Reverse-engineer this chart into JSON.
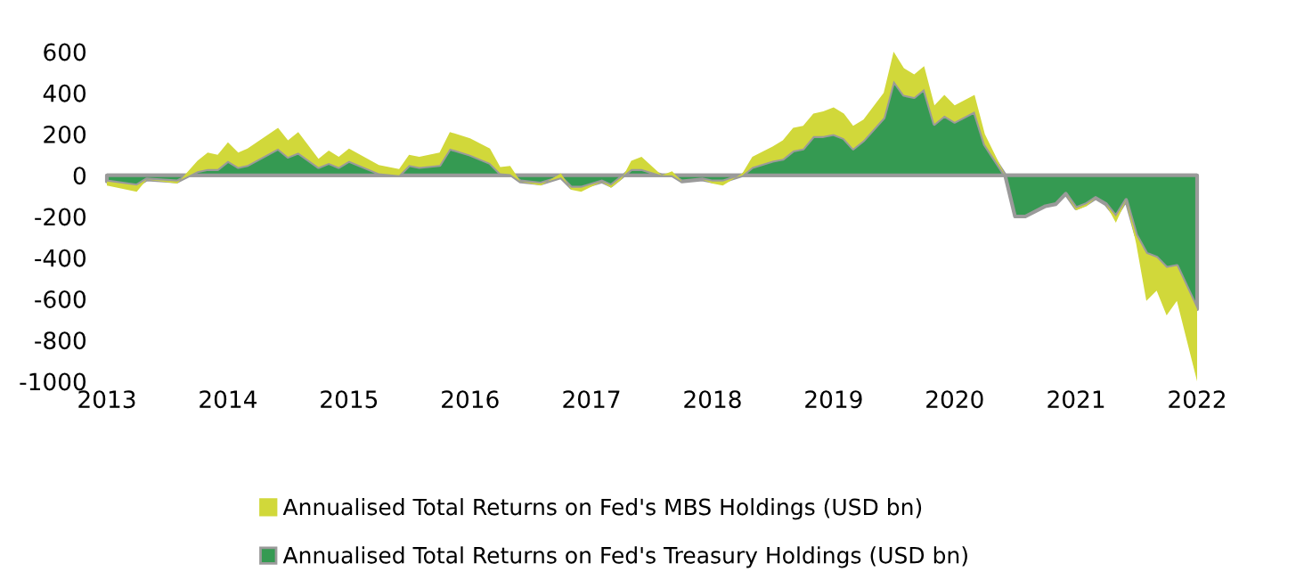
{
  "chart_data": {
    "type": "area",
    "stacked": true,
    "x": [
      "2013-01",
      "2013-04",
      "2013-05",
      "2013-08",
      "2013-10",
      "2013-11",
      "2013-12",
      "2014-01",
      "2014-02",
      "2014-03",
      "2014-06",
      "2014-07",
      "2014-08",
      "2014-10",
      "2014-11",
      "2014-12",
      "2015-01",
      "2015-04",
      "2015-06",
      "2015-07",
      "2015-08",
      "2015-10",
      "2015-11",
      "2016-01",
      "2016-03",
      "2016-04",
      "2016-05",
      "2016-06",
      "2016-08",
      "2016-10",
      "2016-11",
      "2016-12",
      "2017-02",
      "2017-03",
      "2017-04",
      "2017-05",
      "2017-06",
      "2017-08",
      "2017-09",
      "2017-10",
      "2017-12",
      "2018-01",
      "2018-02",
      "2018-04",
      "2018-05",
      "2018-07",
      "2018-08",
      "2018-09",
      "2018-10",
      "2018-11",
      "2018-12",
      "2019-01",
      "2019-02",
      "2019-03",
      "2019-04",
      "2019-06",
      "2019-07",
      "2019-08",
      "2019-09",
      "2019-10",
      "2019-11",
      "2019-12",
      "2020-01",
      "2020-03",
      "2020-04",
      "2020-06",
      "2020-07",
      "2020-08",
      "2020-10",
      "2020-11",
      "2020-12",
      "2021-01",
      "2021-02",
      "2021-03",
      "2021-04",
      "2021-05",
      "2021-06",
      "2021-07",
      "2021-08",
      "2021-09",
      "2021-10",
      "2021-11",
      "2022-01"
    ],
    "series": [
      {
        "name": "Annualised Total Returns on Fed's Treasury Holdings (USD bn)",
        "color": "#359a52",
        "values": [
          -30,
          -50,
          -20,
          -30,
          20,
          30,
          30,
          70,
          40,
          50,
          130,
          90,
          110,
          40,
          60,
          40,
          70,
          10,
          0,
          50,
          40,
          50,
          130,
          100,
          60,
          10,
          5,
          -30,
          -40,
          -10,
          -60,
          -60,
          -30,
          -50,
          -10,
          30,
          30,
          0,
          0,
          -30,
          -20,
          -30,
          -30,
          0,
          40,
          70,
          80,
          120,
          130,
          190,
          190,
          200,
          180,
          130,
          170,
          280,
          460,
          390,
          380,
          420,
          250,
          290,
          260,
          310,
          150,
          0,
          -200,
          -200,
          -150,
          -140,
          -90,
          -160,
          -140,
          -110,
          -140,
          -200,
          -120,
          -290,
          -380,
          -400,
          -450,
          -440,
          -650
        ]
      },
      {
        "name": "Annualised Total Returns on Fed's MBS Holdings (USD bn)",
        "color": "#d1d83a",
        "values": [
          -20,
          -30,
          0,
          -10,
          50,
          80,
          70,
          90,
          70,
          80,
          100,
          80,
          100,
          40,
          60,
          50,
          60,
          40,
          30,
          50,
          50,
          60,
          80,
          80,
          70,
          30,
          40,
          0,
          -10,
          20,
          -10,
          -20,
          0,
          -10,
          -10,
          40,
          60,
          0,
          20,
          0,
          0,
          -10,
          -20,
          10,
          50,
          70,
          90,
          110,
          110,
          110,
          120,
          130,
          120,
          110,
          100,
          120,
          140,
          130,
          110,
          110,
          90,
          100,
          80,
          80,
          50,
          0,
          0,
          0,
          0,
          0,
          0,
          -10,
          -10,
          0,
          0,
          -30,
          0,
          -40,
          -230,
          -160,
          -230,
          -170,
          -350
        ]
      }
    ],
    "ylim": [
      -1000,
      600
    ],
    "yticks": [
      -1000,
      -800,
      -600,
      -400,
      -200,
      0,
      200,
      400,
      600
    ],
    "xlim": [
      "2013-01",
      "2022-01"
    ],
    "xticks": [
      {
        "value": "2013-01",
        "label": "2013"
      },
      {
        "value": "2014-01",
        "label": "2014"
      },
      {
        "value": "2015-01",
        "label": "2015"
      },
      {
        "value": "2016-01",
        "label": "2016"
      },
      {
        "value": "2017-01",
        "label": "2017"
      },
      {
        "value": "2018-01",
        "label": "2018"
      },
      {
        "value": "2019-01",
        "label": "2019"
      },
      {
        "value": "2020-01",
        "label": "2020"
      },
      {
        "value": "2021-01",
        "label": "2021"
      },
      {
        "value": "2022-01",
        "label": "2022"
      }
    ],
    "ref_lines": [
      {
        "axis": "y",
        "value": 0,
        "color": "#9a9a9a"
      }
    ],
    "legend": "bottom",
    "grid": false
  }
}
